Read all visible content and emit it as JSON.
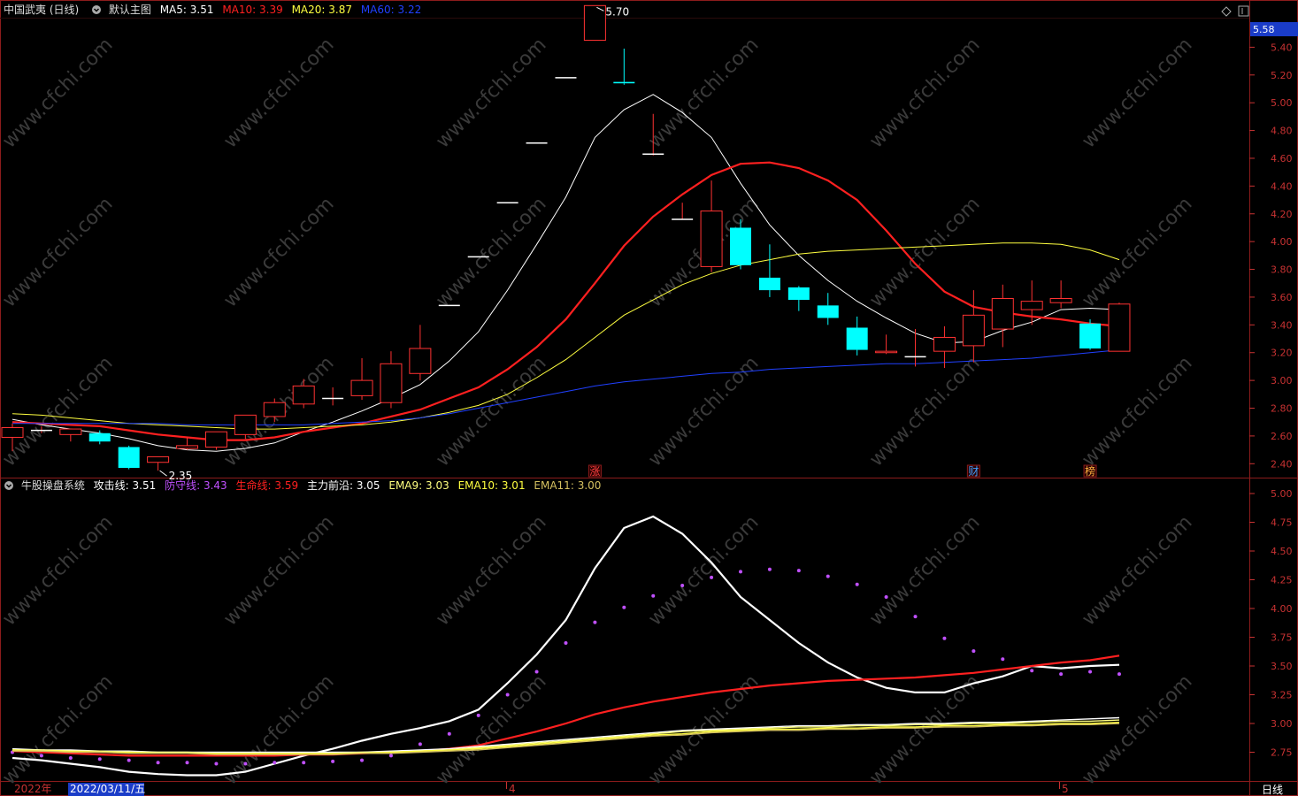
{
  "main_legend": {
    "title": "中国武夷 (日线)",
    "chart_name": "默认主图",
    "ma5_label": "MA5:",
    "ma5_value": "3.51",
    "ma5_color": "#ffffff",
    "ma10_label": "MA10:",
    "ma10_value": "3.39",
    "ma10_color": "#ff2020",
    "ma20_label": "MA20:",
    "ma20_value": "3.87",
    "ma20_color": "#ffff40",
    "ma60_label": "MA60:",
    "ma60_value": "3.22",
    "ma60_color": "#2040ff"
  },
  "sub_legend": {
    "title": "牛股操盘系统",
    "attack_label": "攻击线:",
    "attack_value": "3.51",
    "attack_color": "#ffffff",
    "defend_label": "防守线:",
    "defend_value": "3.43",
    "defend_color": "#c050ff",
    "life_label": "生命线:",
    "life_value": "3.59",
    "life_color": "#ff2020",
    "front_label": "主力前沿:",
    "front_value": "3.05",
    "ema9_label": "EMA9:",
    "ema9_value": "3.03",
    "ema10_label": "EMA10:",
    "ema10_value": "3.01",
    "ema11_label": "EMA11:",
    "ema11_value": "3.00"
  },
  "current_price": "5.58",
  "high_marker": "5.70",
  "low_marker": "2.35",
  "event_markers": [
    {
      "label": "涨",
      "index": 20
    },
    {
      "label": "财",
      "index": 33
    },
    {
      "label": "榜",
      "index": 37
    }
  ],
  "time_axis": {
    "year": "2022年",
    "cursor_date": "2022/03/11/五",
    "month_april": "4",
    "month_may": "5",
    "period": "日线"
  },
  "watermark": "www.cfchi.com",
  "chart_data": [
    {
      "type": "candlestick",
      "title": "中国武夷 (日线)",
      "ylim": [
        2.3,
        5.6
      ],
      "yticks": [
        2.4,
        2.6,
        2.8,
        3.0,
        3.2,
        3.4,
        3.6,
        3.8,
        4.0,
        4.2,
        4.4,
        4.6,
        4.8,
        5.0,
        5.2,
        5.4
      ],
      "candles": [
        {
          "o": 2.59,
          "h": 2.69,
          "l": 2.49,
          "c": 2.66
        },
        {
          "o": 2.64,
          "h": 2.67,
          "l": 2.62,
          "c": 2.64
        },
        {
          "o": 2.61,
          "h": 2.65,
          "l": 2.56,
          "c": 2.65
        },
        {
          "o": 2.62,
          "h": 2.64,
          "l": 2.54,
          "c": 2.56
        },
        {
          "o": 2.52,
          "h": 2.53,
          "l": 2.36,
          "c": 2.37
        },
        {
          "o": 2.41,
          "h": 2.45,
          "l": 2.35,
          "c": 2.45
        },
        {
          "o": 2.51,
          "h": 2.59,
          "l": 2.5,
          "c": 2.53
        },
        {
          "o": 2.52,
          "h": 2.62,
          "l": 2.5,
          "c": 2.63
        },
        {
          "o": 2.61,
          "h": 2.75,
          "l": 2.58,
          "c": 2.75
        },
        {
          "o": 2.74,
          "h": 2.87,
          "l": 2.7,
          "c": 2.84
        },
        {
          "o": 2.83,
          "h": 3.01,
          "l": 2.8,
          "c": 2.96
        },
        {
          "o": 2.87,
          "h": 2.95,
          "l": 2.82,
          "c": 2.87
        },
        {
          "o": 2.89,
          "h": 3.16,
          "l": 2.86,
          "c": 3.0
        },
        {
          "o": 2.84,
          "h": 3.21,
          "l": 2.8,
          "c": 3.12
        },
        {
          "o": 3.05,
          "h": 3.4,
          "l": 3.0,
          "c": 3.23
        },
        {
          "o": 3.54,
          "h": 3.54,
          "l": 3.54,
          "c": 3.54
        },
        {
          "o": 3.89,
          "h": 3.89,
          "l": 3.89,
          "c": 3.89
        },
        {
          "o": 4.28,
          "h": 4.28,
          "l": 4.28,
          "c": 4.28
        },
        {
          "o": 4.71,
          "h": 4.71,
          "l": 4.71,
          "c": 4.71
        },
        {
          "o": 5.18,
          "h": 5.18,
          "l": 5.18,
          "c": 5.18
        },
        {
          "o": 5.45,
          "h": 5.7,
          "l": 5.45,
          "c": 5.7
        },
        {
          "o": 5.15,
          "h": 5.39,
          "l": 5.13,
          "c": 5.14
        },
        {
          "o": 4.63,
          "h": 4.92,
          "l": 4.62,
          "c": 4.63
        },
        {
          "o": 4.16,
          "h": 4.28,
          "l": 4.16,
          "c": 4.16
        },
        {
          "o": 3.82,
          "h": 4.44,
          "l": 3.78,
          "c": 4.22
        },
        {
          "o": 4.1,
          "h": 4.16,
          "l": 3.8,
          "c": 3.83
        },
        {
          "o": 3.74,
          "h": 3.98,
          "l": 3.6,
          "c": 3.65
        },
        {
          "o": 3.67,
          "h": 3.68,
          "l": 3.5,
          "c": 3.58
        },
        {
          "o": 3.54,
          "h": 3.63,
          "l": 3.4,
          "c": 3.45
        },
        {
          "o": 3.38,
          "h": 3.46,
          "l": 3.18,
          "c": 3.22
        },
        {
          "o": 3.2,
          "h": 3.33,
          "l": 3.19,
          "c": 3.21
        },
        {
          "o": 3.17,
          "h": 3.37,
          "l": 3.1,
          "c": 3.17
        },
        {
          "o": 3.21,
          "h": 3.39,
          "l": 3.09,
          "c": 3.31
        },
        {
          "o": 3.25,
          "h": 3.65,
          "l": 3.13,
          "c": 3.47
        },
        {
          "o": 3.37,
          "h": 3.69,
          "l": 3.24,
          "c": 3.59
        },
        {
          "o": 3.51,
          "h": 3.72,
          "l": 3.4,
          "c": 3.57
        },
        {
          "o": 3.56,
          "h": 3.72,
          "l": 3.52,
          "c": 3.59
        },
        {
          "o": 3.41,
          "h": 3.44,
          "l": 3.22,
          "c": 3.23
        },
        {
          "o": 3.21,
          "h": 3.56,
          "l": 3.21,
          "c": 3.55
        }
      ],
      "series": [
        {
          "name": "MA5",
          "color": "#ffffff",
          "values": [
            2.72,
            2.68,
            2.65,
            2.62,
            2.58,
            2.53,
            2.5,
            2.49,
            2.51,
            2.55,
            2.63,
            2.7,
            2.78,
            2.87,
            2.97,
            3.14,
            3.35,
            3.65,
            3.98,
            4.32,
            4.75,
            4.95,
            5.06,
            4.93,
            4.75,
            4.42,
            4.12,
            3.9,
            3.72,
            3.57,
            3.45,
            3.34,
            3.27,
            3.28,
            3.36,
            3.42,
            3.51,
            3.52,
            3.51
          ]
        },
        {
          "name": "MA10",
          "color": "#ff2020",
          "values": [
            2.7,
            2.69,
            2.68,
            2.67,
            2.64,
            2.61,
            2.59,
            2.57,
            2.57,
            2.59,
            2.63,
            2.66,
            2.69,
            2.74,
            2.79,
            2.87,
            2.95,
            3.08,
            3.24,
            3.44,
            3.7,
            3.97,
            4.18,
            4.34,
            4.48,
            4.56,
            4.57,
            4.53,
            4.44,
            4.3,
            4.08,
            3.84,
            3.64,
            3.53,
            3.49,
            3.46,
            3.44,
            3.41,
            3.39
          ]
        },
        {
          "name": "MA20",
          "color": "#ffff40",
          "values": [
            2.76,
            2.75,
            2.73,
            2.71,
            2.69,
            2.68,
            2.67,
            2.66,
            2.65,
            2.65,
            2.66,
            2.67,
            2.68,
            2.7,
            2.73,
            2.77,
            2.82,
            2.9,
            3.02,
            3.15,
            3.31,
            3.47,
            3.58,
            3.69,
            3.77,
            3.83,
            3.87,
            3.91,
            3.93,
            3.94,
            3.95,
            3.96,
            3.97,
            3.98,
            3.99,
            3.99,
            3.98,
            3.94,
            3.87
          ]
        },
        {
          "name": "MA60",
          "color": "#2040ff",
          "values": [
            2.69,
            2.69,
            2.69,
            2.69,
            2.69,
            2.69,
            2.68,
            2.68,
            2.68,
            2.68,
            2.68,
            2.69,
            2.7,
            2.71,
            2.73,
            2.76,
            2.8,
            2.84,
            2.88,
            2.92,
            2.96,
            2.99,
            3.01,
            3.03,
            3.05,
            3.06,
            3.08,
            3.09,
            3.1,
            3.11,
            3.12,
            3.12,
            3.13,
            3.14,
            3.15,
            3.16,
            3.18,
            3.2,
            3.22
          ]
        }
      ]
    },
    {
      "type": "line",
      "title": "牛股操盘系统",
      "ylim": [
        2.5,
        5.1
      ],
      "yticks": [
        2.75,
        3.0,
        3.25,
        3.5,
        3.75,
        4.0,
        4.25,
        4.5,
        4.75,
        5.0
      ],
      "series": [
        {
          "name": "攻击线",
          "color": "#ffffff",
          "style": "line",
          "values": [
            2.7,
            2.68,
            2.65,
            2.62,
            2.58,
            2.56,
            2.55,
            2.55,
            2.58,
            2.65,
            2.72,
            2.78,
            2.85,
            2.91,
            2.96,
            3.02,
            3.12,
            3.35,
            3.6,
            3.9,
            4.35,
            4.7,
            4.8,
            4.65,
            4.4,
            4.1,
            3.9,
            3.7,
            3.53,
            3.4,
            3.31,
            3.27,
            3.27,
            3.35,
            3.41,
            3.5,
            3.48,
            3.5,
            3.51
          ]
        },
        {
          "name": "防守线",
          "color": "#c050ff",
          "style": "dots",
          "values": [
            2.75,
            2.72,
            2.7,
            2.69,
            2.68,
            2.66,
            2.66,
            2.65,
            2.65,
            2.66,
            2.66,
            2.67,
            2.68,
            2.72,
            2.82,
            2.91,
            3.07,
            3.25,
            3.45,
            3.7,
            3.88,
            4.01,
            4.11,
            4.2,
            4.27,
            4.32,
            4.34,
            4.33,
            4.28,
            4.21,
            4.1,
            3.93,
            3.74,
            3.63,
            3.56,
            3.46,
            3.43,
            3.45,
            3.43
          ]
        },
        {
          "name": "生命线",
          "color": "#ff2020",
          "style": "line",
          "values": [
            2.76,
            2.75,
            2.74,
            2.73,
            2.72,
            2.72,
            2.72,
            2.72,
            2.72,
            2.72,
            2.73,
            2.73,
            2.74,
            2.75,
            2.76,
            2.78,
            2.81,
            2.87,
            2.93,
            3.0,
            3.08,
            3.14,
            3.19,
            3.23,
            3.27,
            3.3,
            3.33,
            3.35,
            3.37,
            3.38,
            3.39,
            3.4,
            3.42,
            3.44,
            3.47,
            3.5,
            3.53,
            3.55,
            3.59
          ]
        },
        {
          "name": "主力前沿",
          "color": "#ffffff",
          "style": "line",
          "values": [
            2.78,
            2.77,
            2.77,
            2.76,
            2.76,
            2.75,
            2.75,
            2.75,
            2.75,
            2.75,
            2.75,
            2.75,
            2.75,
            2.76,
            2.77,
            2.78,
            2.8,
            2.82,
            2.84,
            2.86,
            2.88,
            2.9,
            2.92,
            2.94,
            2.95,
            2.96,
            2.97,
            2.98,
            2.98,
            2.99,
            2.99,
            3.0,
            3.0,
            3.01,
            3.01,
            3.02,
            3.03,
            3.04,
            3.05
          ]
        },
        {
          "name": "EMA9",
          "color": "#ffff80",
          "style": "line",
          "values": [
            2.77,
            2.77,
            2.76,
            2.76,
            2.75,
            2.75,
            2.75,
            2.74,
            2.74,
            2.74,
            2.74,
            2.74,
            2.75,
            2.75,
            2.76,
            2.77,
            2.79,
            2.81,
            2.83,
            2.85,
            2.87,
            2.89,
            2.91,
            2.93,
            2.94,
            2.95,
            2.96,
            2.97,
            2.97,
            2.98,
            2.98,
            2.99,
            2.99,
            3.0,
            3.0,
            3.01,
            3.02,
            3.02,
            3.03
          ]
        },
        {
          "name": "EMA10",
          "color": "#ffff40",
          "style": "line",
          "values": [
            2.77,
            2.76,
            2.76,
            2.75,
            2.75,
            2.74,
            2.74,
            2.74,
            2.74,
            2.74,
            2.74,
            2.74,
            2.74,
            2.75,
            2.76,
            2.77,
            2.78,
            2.8,
            2.82,
            2.84,
            2.86,
            2.88,
            2.9,
            2.91,
            2.93,
            2.94,
            2.95,
            2.95,
            2.96,
            2.96,
            2.97,
            2.97,
            2.98,
            2.98,
            2.99,
            2.99,
            3.0,
            3.0,
            3.01
          ]
        },
        {
          "name": "EMA11",
          "color": "#d4c060",
          "style": "line",
          "values": [
            2.76,
            2.76,
            2.75,
            2.75,
            2.74,
            2.74,
            2.74,
            2.73,
            2.73,
            2.73,
            2.73,
            2.73,
            2.74,
            2.74,
            2.75,
            2.76,
            2.77,
            2.79,
            2.81,
            2.83,
            2.85,
            2.87,
            2.89,
            2.9,
            2.92,
            2.93,
            2.94,
            2.94,
            2.95,
            2.95,
            2.96,
            2.96,
            2.97,
            2.97,
            2.98,
            2.98,
            2.99,
            2.99,
            3.0
          ]
        }
      ]
    }
  ]
}
